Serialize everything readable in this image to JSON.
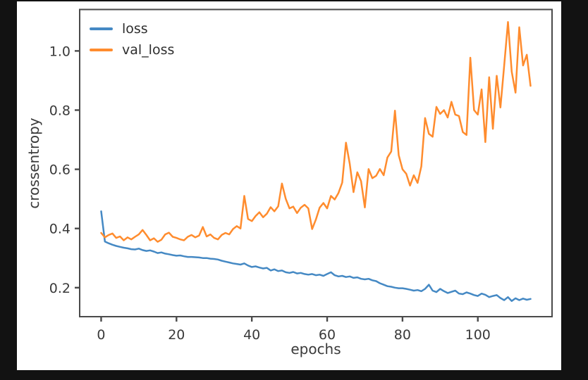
{
  "window": {
    "background_color": "#121212"
  },
  "figure": {
    "background_color": "#ffffff"
  },
  "style": {
    "spine_color": "#4a4a4a",
    "tick_color": "#4a4a4a",
    "tick_label_color": "#3a3a3a",
    "text_color": "#3a3a3a"
  },
  "chart_data": {
    "type": "line",
    "title": "",
    "xlabel": "epochs",
    "ylabel": "crossentropy",
    "xlim": [
      -5.7,
      119.7
    ],
    "ylim": [
      0.102,
      1.14
    ],
    "xticks": [
      0,
      20,
      40,
      60,
      80,
      100
    ],
    "yticks": [
      0.2,
      0.4,
      0.6,
      0.8,
      1.0
    ],
    "grid": false,
    "legend": {
      "position": "upper left",
      "entries": [
        "loss",
        "val_loss"
      ]
    },
    "x": [
      0,
      1,
      2,
      3,
      4,
      5,
      6,
      7,
      8,
      9,
      10,
      11,
      12,
      13,
      14,
      15,
      16,
      17,
      18,
      19,
      20,
      21,
      22,
      23,
      24,
      25,
      26,
      27,
      28,
      29,
      30,
      31,
      32,
      33,
      34,
      35,
      36,
      37,
      38,
      39,
      40,
      41,
      42,
      43,
      44,
      45,
      46,
      47,
      48,
      49,
      50,
      51,
      52,
      53,
      54,
      55,
      56,
      57,
      58,
      59,
      60,
      61,
      62,
      63,
      64,
      65,
      66,
      67,
      68,
      69,
      70,
      71,
      72,
      73,
      74,
      75,
      76,
      77,
      78,
      79,
      80,
      81,
      82,
      83,
      84,
      85,
      86,
      87,
      88,
      89,
      90,
      91,
      92,
      93,
      94,
      95,
      96,
      97,
      98,
      99,
      100,
      101,
      102,
      103,
      104,
      105,
      106,
      107,
      108,
      109,
      110,
      111,
      112,
      113,
      114
    ],
    "series": [
      {
        "name": "loss",
        "color": "#4589c4",
        "values": [
          0.458,
          0.356,
          0.35,
          0.345,
          0.341,
          0.338,
          0.335,
          0.333,
          0.33,
          0.329,
          0.332,
          0.327,
          0.324,
          0.326,
          0.322,
          0.317,
          0.319,
          0.315,
          0.313,
          0.31,
          0.308,
          0.309,
          0.306,
          0.304,
          0.304,
          0.303,
          0.302,
          0.3,
          0.3,
          0.298,
          0.297,
          0.295,
          0.291,
          0.288,
          0.285,
          0.282,
          0.28,
          0.278,
          0.282,
          0.275,
          0.27,
          0.272,
          0.268,
          0.265,
          0.267,
          0.258,
          0.262,
          0.256,
          0.258,
          0.252,
          0.25,
          0.253,
          0.248,
          0.25,
          0.246,
          0.244,
          0.246,
          0.242,
          0.244,
          0.24,
          0.246,
          0.252,
          0.242,
          0.238,
          0.24,
          0.236,
          0.238,
          0.233,
          0.235,
          0.23,
          0.228,
          0.23,
          0.225,
          0.222,
          0.215,
          0.21,
          0.205,
          0.203,
          0.2,
          0.198,
          0.198,
          0.196,
          0.193,
          0.19,
          0.192,
          0.188,
          0.196,
          0.21,
          0.19,
          0.185,
          0.196,
          0.188,
          0.182,
          0.186,
          0.19,
          0.18,
          0.178,
          0.184,
          0.18,
          0.175,
          0.172,
          0.18,
          0.176,
          0.168,
          0.172,
          0.175,
          0.165,
          0.158,
          0.168,
          0.155,
          0.164,
          0.158,
          0.163,
          0.159,
          0.162
        ]
      },
      {
        "name": "val_loss",
        "color": "#ff8c2e",
        "values": [
          0.385,
          0.37,
          0.378,
          0.383,
          0.368,
          0.373,
          0.36,
          0.37,
          0.363,
          0.372,
          0.38,
          0.395,
          0.378,
          0.36,
          0.367,
          0.355,
          0.362,
          0.38,
          0.386,
          0.372,
          0.368,
          0.363,
          0.36,
          0.372,
          0.378,
          0.37,
          0.376,
          0.405,
          0.373,
          0.38,
          0.368,
          0.363,
          0.378,
          0.385,
          0.38,
          0.398,
          0.408,
          0.4,
          0.51,
          0.432,
          0.425,
          0.442,
          0.455,
          0.438,
          0.45,
          0.472,
          0.458,
          0.475,
          0.552,
          0.5,
          0.468,
          0.474,
          0.452,
          0.47,
          0.48,
          0.468,
          0.398,
          0.43,
          0.47,
          0.486,
          0.468,
          0.51,
          0.498,
          0.52,
          0.555,
          0.69,
          0.618,
          0.523,
          0.59,
          0.56,
          0.471,
          0.601,
          0.57,
          0.578,
          0.601,
          0.58,
          0.64,
          0.66,
          0.798,
          0.648,
          0.6,
          0.585,
          0.545,
          0.58,
          0.554,
          0.61,
          0.773,
          0.72,
          0.71,
          0.811,
          0.787,
          0.8,
          0.775,
          0.828,
          0.785,
          0.78,
          0.726,
          0.716,
          0.977,
          0.8,
          0.785,
          0.87,
          0.692,
          0.911,
          0.737,
          0.916,
          0.809,
          0.95,
          1.098,
          0.93,
          0.859,
          1.08,
          0.951,
          0.987,
          0.882
        ]
      }
    ]
  }
}
